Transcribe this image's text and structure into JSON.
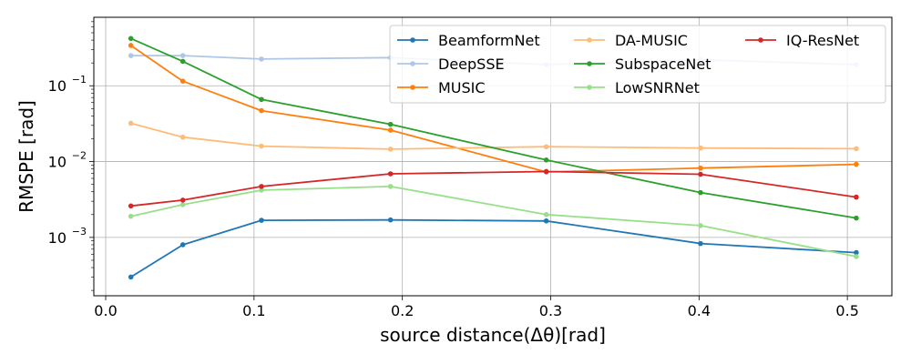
{
  "chart_data": {
    "type": "line",
    "xlabel": "source distance(Δθ)[rad]",
    "ylabel": "RMSPE [rad]",
    "yscale": "log",
    "xlim": [
      -0.008,
      0.53
    ],
    "ylim": [
      0.00017,
      0.8
    ],
    "xticks": [
      0.0,
      0.1,
      0.2,
      0.3,
      0.4,
      0.5
    ],
    "xtick_labels": [
      "0.0",
      "0.1",
      "0.2",
      "0.3",
      "0.4",
      "0.5"
    ],
    "yticks": [
      0.001,
      0.01,
      0.1
    ],
    "ytick_labels": [
      {
        "base": "10",
        "exp": "−3"
      },
      {
        "base": "10",
        "exp": "−2"
      },
      {
        "base": "10",
        "exp": "−1"
      }
    ],
    "grid": true,
    "legend_position": "top-right",
    "x": [
      0.017,
      0.052,
      0.105,
      0.192,
      0.297,
      0.401,
      0.506
    ],
    "series": [
      {
        "name": "BeamformNet",
        "color": "#1f77b4",
        "values": [
          0.0003,
          0.0008,
          0.00168,
          0.0017,
          0.00165,
          0.00083,
          0.00063
        ]
      },
      {
        "name": "DeepSSE",
        "color": "#aec7e8",
        "values": [
          0.25,
          0.25,
          0.225,
          0.235,
          0.19,
          0.22,
          0.19
        ]
      },
      {
        "name": "MUSIC",
        "color": "#ff7f0e",
        "values": [
          0.34,
          0.115,
          0.047,
          0.026,
          0.0073,
          0.0082,
          0.0092
        ]
      },
      {
        "name": "DA-MUSIC",
        "color": "#ffbb78",
        "values": [
          0.032,
          0.021,
          0.016,
          0.0146,
          0.0157,
          0.0151,
          0.0148
        ]
      },
      {
        "name": "SubspaceNet",
        "color": "#2ca02c",
        "values": [
          0.42,
          0.21,
          0.066,
          0.031,
          0.0105,
          0.0039,
          0.0018
        ]
      },
      {
        "name": "LowSNRNet",
        "color": "#98df8a",
        "values": [
          0.0019,
          0.0027,
          0.0042,
          0.0047,
          0.002,
          0.00143,
          0.00056
        ]
      },
      {
        "name": "IQ-ResNet",
        "color": "#d62728",
        "values": [
          0.0026,
          0.0031,
          0.0047,
          0.0069,
          0.0074,
          0.0068,
          0.0034
        ]
      }
    ]
  }
}
